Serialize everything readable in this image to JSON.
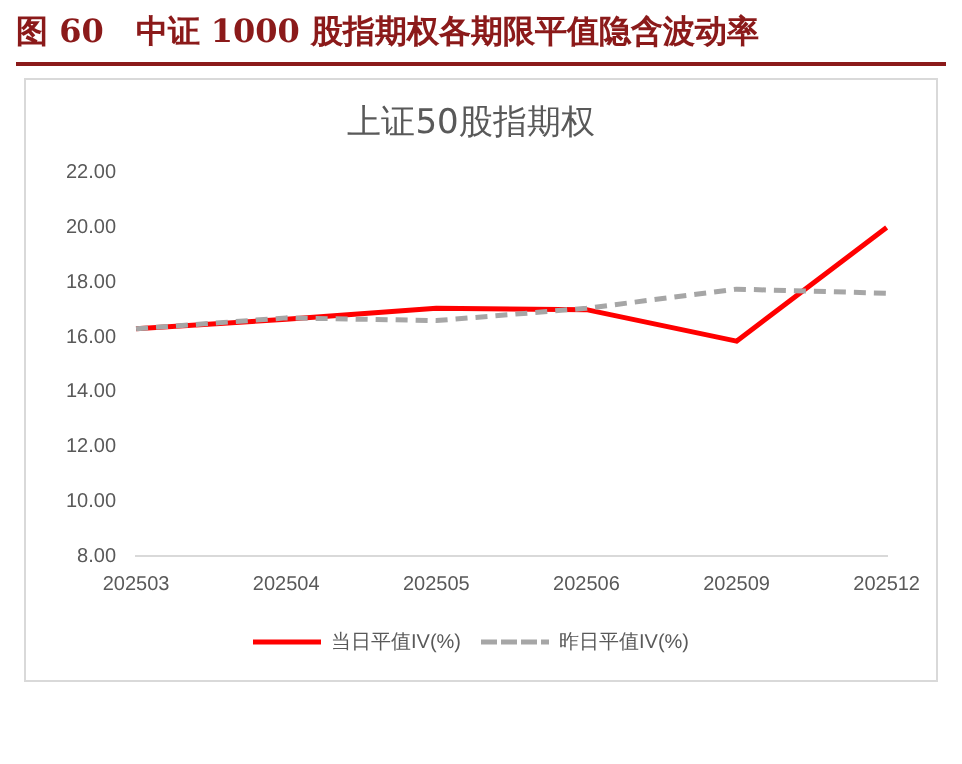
{
  "chart_data": {
    "type": "line",
    "title": "图 60　中证 1000 股指期权各期限平值隐含波动率",
    "subtitle": "上证50股指期权",
    "categories": [
      "202503",
      "202504",
      "202505",
      "202506",
      "202509",
      "202512"
    ],
    "series": [
      {
        "name": "当日平值IV(%)",
        "color": "#ff0000",
        "values": [
          16.3,
          16.65,
          17.05,
          17.0,
          15.85,
          20.0
        ]
      },
      {
        "name": "昨日平值IV(%)",
        "color": "#a6a6a6",
        "line_style": "dashed",
        "values": [
          16.3,
          16.7,
          16.6,
          17.05,
          17.75,
          17.6
        ]
      }
    ],
    "ylim": [
      8,
      22
    ],
    "yticks": [
      {
        "value": 8,
        "label": "8.00"
      },
      {
        "value": 10,
        "label": "10.00"
      },
      {
        "value": 12,
        "label": "12.00"
      },
      {
        "value": 14,
        "label": "14.00"
      },
      {
        "value": 16,
        "label": "16.00"
      },
      {
        "value": 18,
        "label": "18.00"
      },
      {
        "value": 20,
        "label": "20.00"
      },
      {
        "value": 22,
        "label": "22.00"
      }
    ],
    "grid": false,
    "legend": "bottom",
    "marker": "none"
  }
}
